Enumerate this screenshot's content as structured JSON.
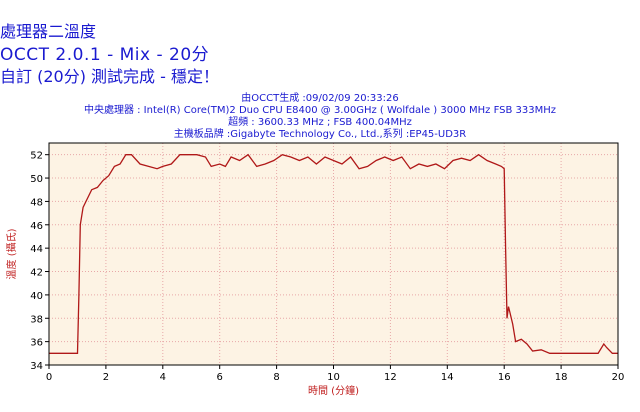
{
  "header": {
    "title_line1": "處理器二溫度",
    "title_line2": "OCCT 2.0.1 - Mix - 20分",
    "title_line3": "自訂 (20分) 測試完成 - 穩定！",
    "info_line1": "由OCCT生成 :09/02/09 20:33:26",
    "info_line2": "中央處理器 : Intel(R) Core(TM)2 Duo CPU E8400 @ 3.00GHz ( Wolfdale ) 3000 MHz FSB 333MHz",
    "info_line3": "超頻 : 3600.33 MHz ; FSB 400.04MHz",
    "info_line4": "主機板品牌 :Gigabyte Technology Co., Ltd.,系列 :EP45-UD3R"
  },
  "colors": {
    "text": "#1a1ad0",
    "line": "#b01818",
    "plot_bg": "#fdf3e4",
    "grid": "#e8a8a8",
    "axis_title": "#c02020"
  },
  "chart_data": {
    "type": "line",
    "xlabel": "時間 (分鐘)",
    "ylabel": "溫度 (攝氏)",
    "xlim": [
      0,
      20
    ],
    "ylim": [
      34,
      53
    ],
    "xticks": [
      0,
      2,
      4,
      6,
      8,
      10,
      12,
      14,
      16,
      18,
      20
    ],
    "yticks": [
      34,
      36,
      38,
      40,
      42,
      44,
      46,
      48,
      50,
      52
    ],
    "grid": true,
    "series": [
      {
        "name": "",
        "x": [
          0,
          0.5,
          1.0,
          1.05,
          1.1,
          1.2,
          1.3,
          1.5,
          1.7,
          1.9,
          2.1,
          2.3,
          2.5,
          2.7,
          2.9,
          3.2,
          3.5,
          3.8,
          4.0,
          4.3,
          4.6,
          4.9,
          5.2,
          5.5,
          5.7,
          6.0,
          6.2,
          6.4,
          6.7,
          7.0,
          7.3,
          7.6,
          7.9,
          8.2,
          8.5,
          8.8,
          9.1,
          9.4,
          9.7,
          10.0,
          10.3,
          10.6,
          10.9,
          11.2,
          11.5,
          11.8,
          12.1,
          12.4,
          12.7,
          13.0,
          13.3,
          13.6,
          13.9,
          14.2,
          14.5,
          14.8,
          15.1,
          15.4,
          15.7,
          15.9,
          16.0,
          16.05,
          16.1,
          16.15,
          16.2,
          16.3,
          16.4,
          16.6,
          16.8,
          17.0,
          17.3,
          17.6,
          18.0,
          18.5,
          19.0,
          19.3,
          19.5,
          19.6,
          19.8,
          20.0
        ],
        "values": [
          35,
          35,
          35,
          40,
          46,
          47.5,
          48,
          49,
          49.2,
          49.8,
          50.2,
          51,
          51.2,
          52,
          52,
          51.2,
          51,
          50.8,
          51,
          51.2,
          52,
          52,
          52,
          51.8,
          51,
          51.2,
          51,
          51.8,
          51.5,
          52,
          51,
          51.2,
          51.5,
          52,
          51.8,
          51.5,
          51.8,
          51.2,
          51.8,
          51.5,
          51.2,
          51.8,
          50.8,
          51,
          51.5,
          51.8,
          51.5,
          51.8,
          50.8,
          51.2,
          51,
          51.2,
          50.8,
          51.5,
          51.7,
          51.5,
          52,
          51.5,
          51.2,
          51,
          50.8,
          44,
          38,
          39,
          38.5,
          37.5,
          36,
          36.2,
          35.8,
          35.2,
          35.3,
          35,
          35,
          35,
          35,
          35,
          35.8,
          35.5,
          35,
          35
        ]
      }
    ]
  }
}
